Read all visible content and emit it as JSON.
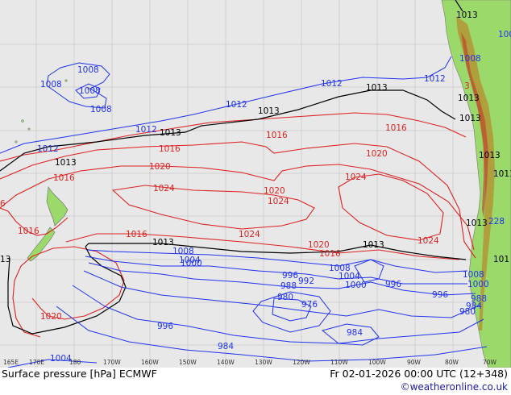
{
  "title": "Surface pressure [hPa] ECMWF",
  "valid_time": "Fr 02-01-2026 00:00 UTC (12+348)",
  "credit": "©weatheronline.co.uk",
  "colors": {
    "ocean": "#e8e8e8",
    "land": "#9bd96b",
    "high_isobar": "#dd2222",
    "low_isobar": "#2233ee",
    "standard_isobar": "#000000",
    "grid": "#c8c8c8"
  },
  "longitude_labels": [
    "165E",
    "170E",
    "180",
    "170W",
    "160W",
    "150W",
    "140W",
    "130W",
    "120W",
    "110W",
    "100W",
    "90W",
    "80W",
    "70W"
  ],
  "isobar_labels": {
    "k1013": "1013",
    "b1012": "1012",
    "b1008": "1008",
    "b1004": "1004",
    "b1000": "1000",
    "b996": "996",
    "b992": "992",
    "b988": "988",
    "b984": "984",
    "b980": "980",
    "b976": "976",
    "r1016": "1016",
    "r1020": "1020",
    "r1024": "1024",
    "b228": "228",
    "r3": "3",
    "k13": "13",
    "r6": "6",
    "k101": "101",
    "b100": "100"
  }
}
